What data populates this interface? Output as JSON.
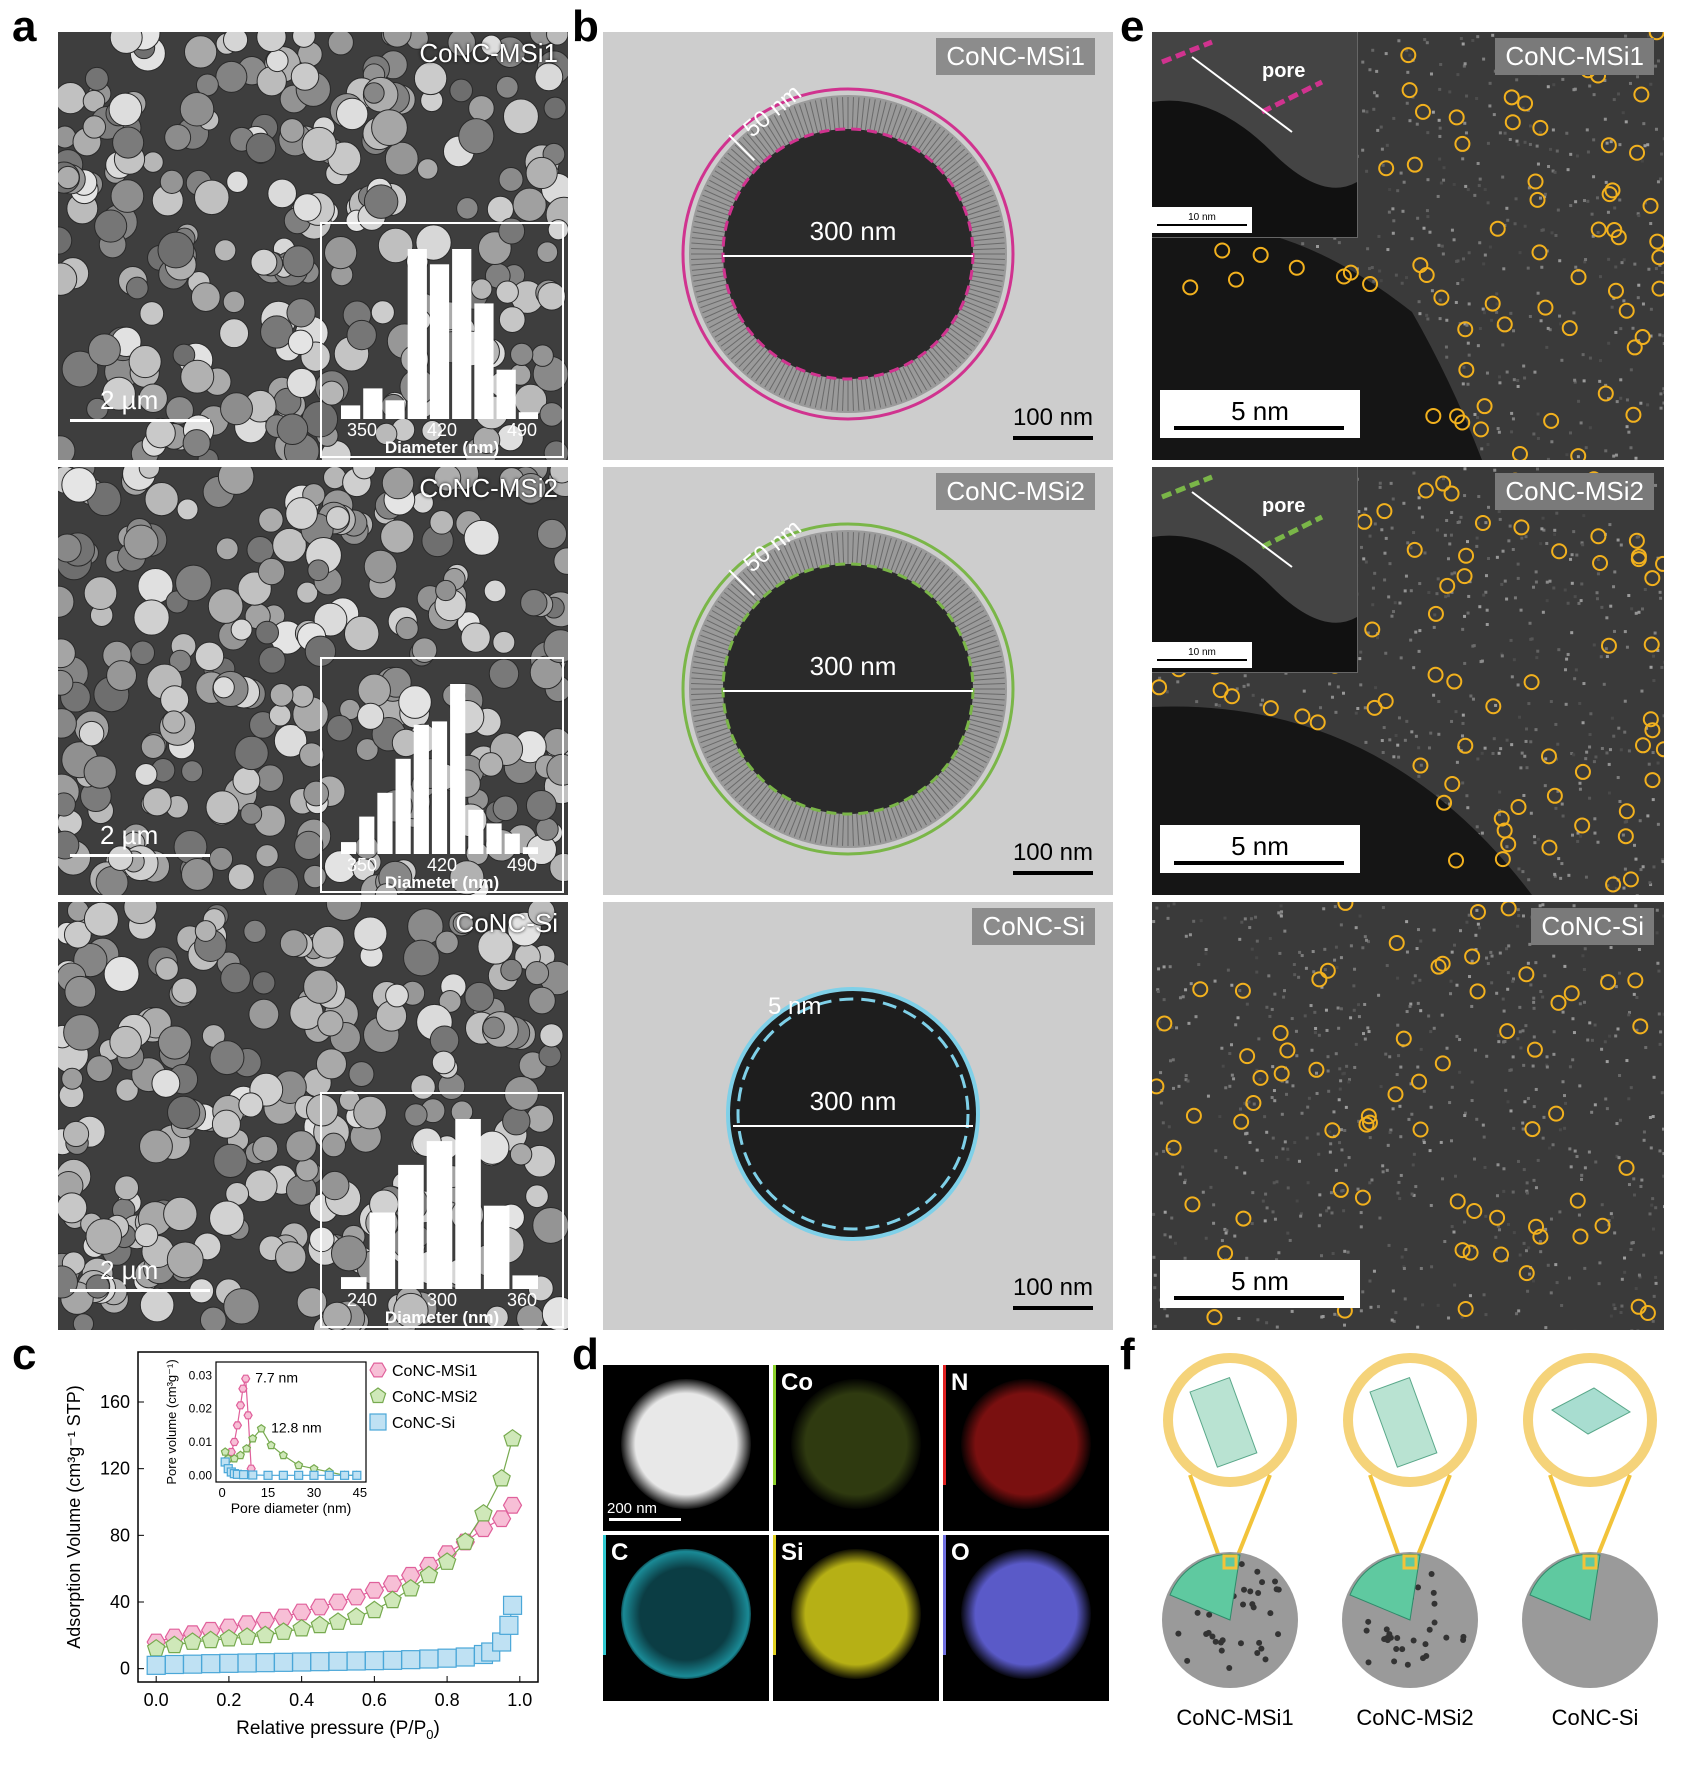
{
  "panels": {
    "a": {
      "label": "a",
      "rows": [
        {
          "tag": "CoNC-MSi1",
          "scale": "2 µm",
          "hist": {
            "values": [
              0.08,
              0.18,
              0.11,
              1.0,
              0.91,
              1.0,
              0.68,
              0.29,
              0.04
            ],
            "ticks": [
              "350",
              "420",
              "490"
            ],
            "xlabel": "Diameter (nm)"
          }
        },
        {
          "tag": "CoNC-MSi2",
          "scale": "2 µm",
          "hist": {
            "values": [
              0.07,
              0.22,
              0.36,
              0.56,
              0.76,
              0.78,
              1.0,
              0.26,
              0.18,
              0.12,
              0.04
            ],
            "ticks": [
              "350",
              "420",
              "490"
            ],
            "xlabel": "Diameter (nm)"
          }
        },
        {
          "tag": "CoNC-Si",
          "scale": "2 µm",
          "hist": {
            "values": [
              0.07,
              0.45,
              0.73,
              0.87,
              1.0,
              0.49,
              0.08
            ],
            "ticks": [
              "240",
              "300",
              "360"
            ],
            "xlabel": "Diameter (nm)"
          }
        }
      ]
    },
    "b": {
      "label": "b",
      "rows": [
        {
          "tag": "CoNC-MSi1",
          "shell": "50 nm",
          "diam": "300 nm",
          "scale": "100 nm",
          "color": "#d0338f"
        },
        {
          "tag": "CoNC-MSi2",
          "shell": "50 nm",
          "diam": "300 nm",
          "scale": "100 nm",
          "color": "#7ab648"
        },
        {
          "tag": "CoNC-Si",
          "shell": "5 nm",
          "diam": "300 nm",
          "scale": "100 nm",
          "color": "#7fd0e8"
        }
      ]
    },
    "e": {
      "label": "e",
      "rows": [
        {
          "tag": "CoNC-MSi1",
          "scale": "5 nm",
          "inset_label": "pore",
          "inset_scale": "10 nm"
        },
        {
          "tag": "CoNC-MSi2",
          "scale": "5 nm",
          "inset_label": "pore",
          "inset_scale": "10 nm"
        },
        {
          "tag": "CoNC-Si",
          "scale": "5 nm"
        }
      ]
    },
    "c": {
      "label": "c"
    },
    "d": {
      "label": "d",
      "tiles": [
        "",
        "Co",
        "N",
        "C",
        "Si",
        "O"
      ],
      "scale": "200 nm"
    },
    "f": {
      "label": "f",
      "names": [
        "CoNC-MSi1",
        "CoNC-MSi2",
        "CoNC-Si"
      ]
    }
  },
  "chart_data": {
    "type": "scatter",
    "xlabel": "Relative pressure (P/P",
    "xlabel_sub": "0",
    "xlabel_end": ")",
    "ylabel": "Adsorption Volume (cm³g⁻¹ STP)",
    "xlim": [
      -0.05,
      1.05
    ],
    "ylim": [
      -8,
      190
    ],
    "xticks": [
      "0.0",
      "0.2",
      "0.4",
      "0.6",
      "0.8",
      "1.0"
    ],
    "yticks": [
      "0",
      "40",
      "80",
      "120",
      "160"
    ],
    "legend": [
      "CoNC-MSi1",
      "CoNC-MSi2",
      "CoNC-Si"
    ],
    "series": [
      {
        "name": "CoNC-MSi1",
        "color": "#e0609b",
        "fill": "#f7bfd6",
        "marker": "hexagon",
        "x": [
          0.0,
          0.05,
          0.1,
          0.15,
          0.2,
          0.25,
          0.3,
          0.35,
          0.4,
          0.45,
          0.5,
          0.55,
          0.6,
          0.65,
          0.7,
          0.75,
          0.8,
          0.85,
          0.9,
          0.95,
          0.98
        ],
        "y": [
          16,
          19,
          21,
          23,
          25,
          27,
          29,
          31,
          34,
          37,
          40,
          43,
          47,
          51,
          56,
          62,
          69,
          76,
          84,
          90,
          98
        ]
      },
      {
        "name": "CoNC-MSi2",
        "color": "#77aa4f",
        "fill": "#cfe8b9",
        "marker": "pentagon",
        "x": [
          0.0,
          0.05,
          0.1,
          0.15,
          0.2,
          0.25,
          0.3,
          0.35,
          0.4,
          0.45,
          0.5,
          0.55,
          0.6,
          0.65,
          0.7,
          0.75,
          0.8,
          0.85,
          0.9,
          0.95,
          0.98
        ],
        "y": [
          12,
          14,
          16,
          17,
          18,
          19,
          20,
          22,
          24,
          26,
          28,
          31,
          35,
          41,
          48,
          56,
          64,
          76,
          93,
          114,
          138
        ]
      },
      {
        "name": "CoNC-Si",
        "color": "#4aa7d8",
        "fill": "#bfe1f3",
        "marker": "square",
        "x": [
          0.0,
          0.05,
          0.1,
          0.15,
          0.2,
          0.25,
          0.3,
          0.35,
          0.4,
          0.45,
          0.5,
          0.55,
          0.6,
          0.65,
          0.7,
          0.75,
          0.8,
          0.85,
          0.9,
          0.92,
          0.95,
          0.97,
          0.98
        ],
        "y": [
          2,
          2.5,
          2.7,
          3,
          3.2,
          3.4,
          3.6,
          3.8,
          4,
          4.2,
          4.4,
          4.6,
          4.8,
          5,
          5.4,
          5.8,
          6.3,
          7,
          8.5,
          10,
          16,
          26,
          38
        ]
      }
    ],
    "inset": {
      "xlabel": "Pore diameter (nm)",
      "ylabel": "Pore volume (cm³g⁻¹)",
      "xlim": [
        -2,
        47
      ],
      "ylim": [
        -0.002,
        0.034
      ],
      "xticks": [
        "0",
        "15",
        "30",
        "45"
      ],
      "yticks": [
        "0.00",
        "0.01",
        "0.02",
        "0.03"
      ],
      "annotations": [
        "7.7 nm",
        "12.8 nm"
      ],
      "series": [
        {
          "name": "CoNC-MSi1",
          "x": [
            1,
            2,
            3,
            4,
            5,
            6,
            6.8,
            7.7,
            8.5,
            9.5
          ],
          "y": [
            0.004,
            0.005,
            0.007,
            0.01,
            0.015,
            0.021,
            0.026,
            0.029,
            0.018,
            0.002
          ]
        },
        {
          "name": "CoNC-MSi2",
          "x": [
            1,
            2,
            4,
            6,
            8,
            10,
            12.8,
            16,
            20,
            25,
            30,
            35,
            40,
            44
          ],
          "y": [
            0.007,
            0.005,
            0.005,
            0.006,
            0.008,
            0.011,
            0.014,
            0.009,
            0.006,
            0.003,
            0.002,
            0.001,
            0.0,
            0.0
          ]
        },
        {
          "name": "CoNC-Si",
          "x": [
            1,
            2,
            3,
            4,
            5,
            7,
            10,
            15,
            20,
            25,
            30,
            35,
            40,
            44
          ],
          "y": [
            0.004,
            0.002,
            0.001,
            0.0005,
            0.0003,
            0.0002,
            0.0001,
            0.0,
            0.0,
            0.0,
            0.0,
            0.0,
            0.0,
            0.0
          ]
        }
      ]
    }
  }
}
